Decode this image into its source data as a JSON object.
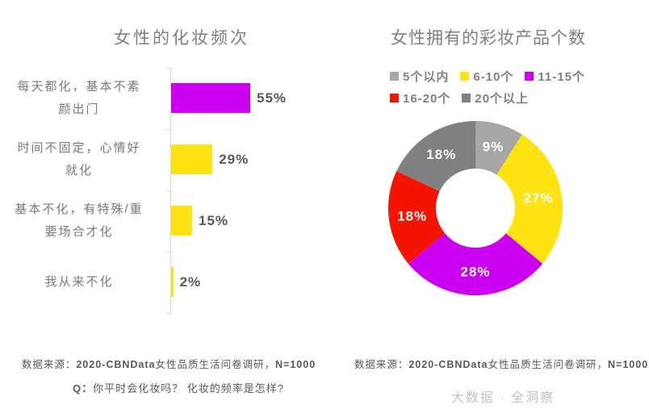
{
  "watermark": "大数据 · 全洞察",
  "colors": {
    "magenta": "#CC00F0",
    "yellow": "#FFE211",
    "red": "#F51400",
    "gray_light": "#A6A6A6",
    "gray_dark": "#808080",
    "title_text": "#808080",
    "category_text": "#7A7A7A",
    "value_text": "#595959",
    "axis_line": "#D9D9D9",
    "watermark_text": "#C3C3C3",
    "slice_label_text": "#FFFFFF"
  },
  "left_chart": {
    "source_segments": [
      {
        "text": "数据来源：",
        "bold": false
      },
      {
        "text": "2020-CBNData",
        "bold": true
      },
      {
        "text": "女性品质生活问卷调研，",
        "bold": false
      },
      {
        "text": "N=1000",
        "bold": true
      }
    ],
    "question_segments": [
      {
        "text": "Q：",
        "bold": true
      },
      {
        "text": "你平时会化妆吗？ 化妆的频率是怎样?",
        "bold": false
      }
    ]
  },
  "right_chart": {
    "source_segments": [
      {
        "text": "数据来源：",
        "bold": false
      },
      {
        "text": "2020-CBNData",
        "bold": true
      },
      {
        "text": "女性品质生活问卷调研，",
        "bold": false
      },
      {
        "text": "N=1000",
        "bold": true
      }
    ]
  },
  "chart_data": [
    {
      "type": "bar",
      "orientation": "horizontal",
      "title": "女性的化妆频次",
      "categories": [
        "每天都化，基本不素颜出门",
        "时间不固定，心情好就化",
        "基本不化，有特殊/重要场合才化",
        "我从来不化"
      ],
      "category_lines": [
        [
          "每天都化，基本不素",
          "颜出门"
        ],
        [
          "时间不固定，心情好",
          "就化"
        ],
        [
          "基本不化，有特殊/重",
          "要场合才化"
        ],
        [
          "我从来不化"
        ]
      ],
      "values": [
        55,
        29,
        15,
        2
      ],
      "value_labels": [
        "55%",
        "29%",
        "15%",
        "2%"
      ],
      "bar_colors": [
        "#CC00F0",
        "#FFE211",
        "#FFE211",
        "#FFE211"
      ],
      "unit": "%",
      "xlim": [
        0,
        100
      ],
      "grid": false
    },
    {
      "type": "pie",
      "subtype": "donut",
      "title": "女性拥有的彩妆产品个数",
      "labels": [
        "5个以内",
        "6-10个",
        "11-15个",
        "16-20个",
        "20个以上"
      ],
      "values": [
        9,
        27,
        28,
        18,
        18
      ],
      "slice_labels": [
        "9%",
        "27%",
        "28%",
        "18%",
        "18%"
      ],
      "colors": [
        "#A6A6A6",
        "#FFE211",
        "#CC00F0",
        "#F51400",
        "#808080"
      ],
      "legend_position": "top",
      "legend_rows": [
        3,
        2
      ],
      "start_angle_deg": 0,
      "direction": "clockwise"
    }
  ]
}
